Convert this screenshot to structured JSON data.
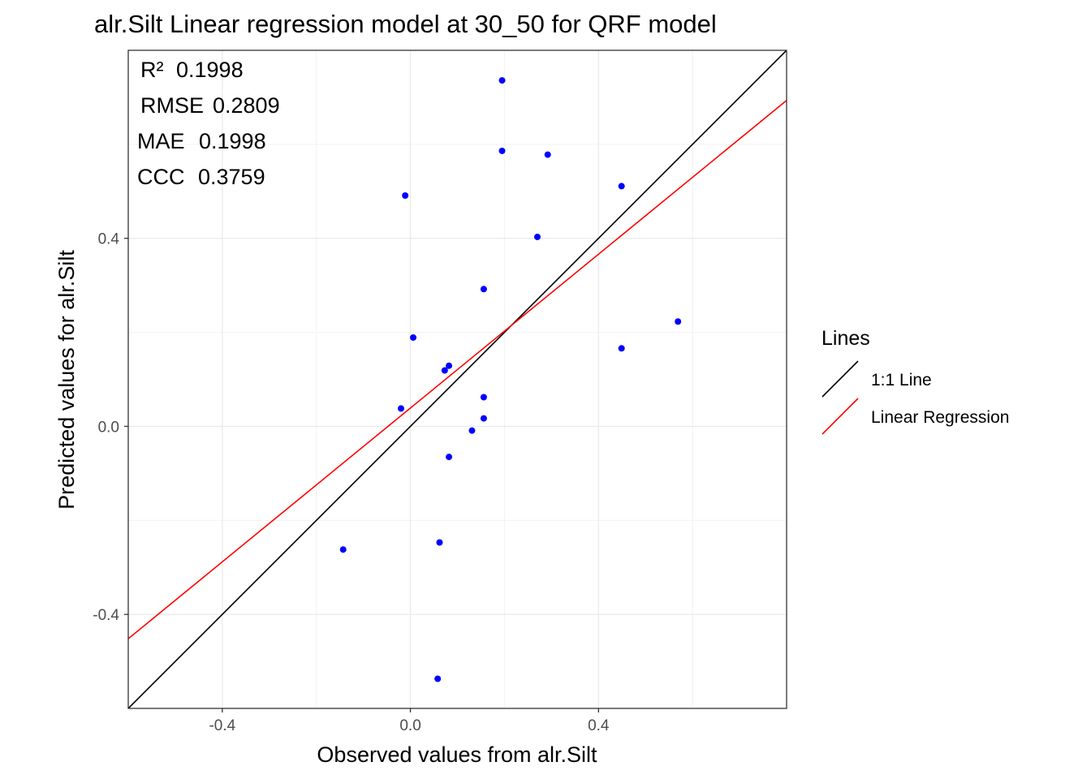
{
  "chart_data": {
    "type": "scatter",
    "title": "alr.Silt  Linear regression model at  30_50  for  QRF  model",
    "xlabel": "Observed values from alr.Silt",
    "ylabel": "Predicted values for alr.Silt",
    "xlim": [
      -0.6,
      0.8
    ],
    "ylim": [
      -0.6,
      0.8
    ],
    "x_ticks": [
      -0.4,
      0.0,
      0.4
    ],
    "y_ticks": [
      -0.4,
      0.0,
      0.4
    ],
    "x_tick_labels": [
      "-0.4",
      "0.0",
      "0.4"
    ],
    "y_tick_labels": [
      "-0.4",
      "0.0",
      "0.4"
    ],
    "grid": true,
    "point_color": "#0000ff",
    "points": [
      {
        "x": 0.195,
        "y": 0.736
      },
      {
        "x": 0.195,
        "y": 0.586
      },
      {
        "x": 0.292,
        "y": 0.578
      },
      {
        "x": 0.449,
        "y": 0.511
      },
      {
        "x": -0.011,
        "y": 0.491
      },
      {
        "x": 0.27,
        "y": 0.403
      },
      {
        "x": 0.156,
        "y": 0.292
      },
      {
        "x": 0.569,
        "y": 0.223
      },
      {
        "x": 0.006,
        "y": 0.189
      },
      {
        "x": 0.449,
        "y": 0.166
      },
      {
        "x": 0.082,
        "y": 0.129
      },
      {
        "x": 0.073,
        "y": 0.119
      },
      {
        "x": 0.156,
        "y": 0.062
      },
      {
        "x": -0.02,
        "y": 0.038
      },
      {
        "x": 0.156,
        "y": 0.017
      },
      {
        "x": 0.131,
        "y": -0.009
      },
      {
        "x": 0.082,
        "y": -0.065
      },
      {
        "x": 0.062,
        "y": -0.247
      },
      {
        "x": -0.143,
        "y": -0.262
      },
      {
        "x": 0.058,
        "y": -0.537
      }
    ],
    "lines": [
      {
        "name": "1:1 Line",
        "color": "#000000",
        "slope": 1.0,
        "intercept": 0.0
      },
      {
        "name": "Linear Regression",
        "color": "#ff0000",
        "slope": 0.818,
        "intercept": 0.039
      }
    ],
    "legend": {
      "title": "Lines",
      "position": "right",
      "items": [
        "1:1 Line",
        "Linear Regression"
      ]
    },
    "annotations": [
      {
        "label": "R²",
        "value": "0.1998"
      },
      {
        "label": "RMSE",
        "value": "0.2809"
      },
      {
        "label": "MAE",
        "value": "0.1998"
      },
      {
        "label": "CCC",
        "value": "0.3759"
      }
    ]
  }
}
